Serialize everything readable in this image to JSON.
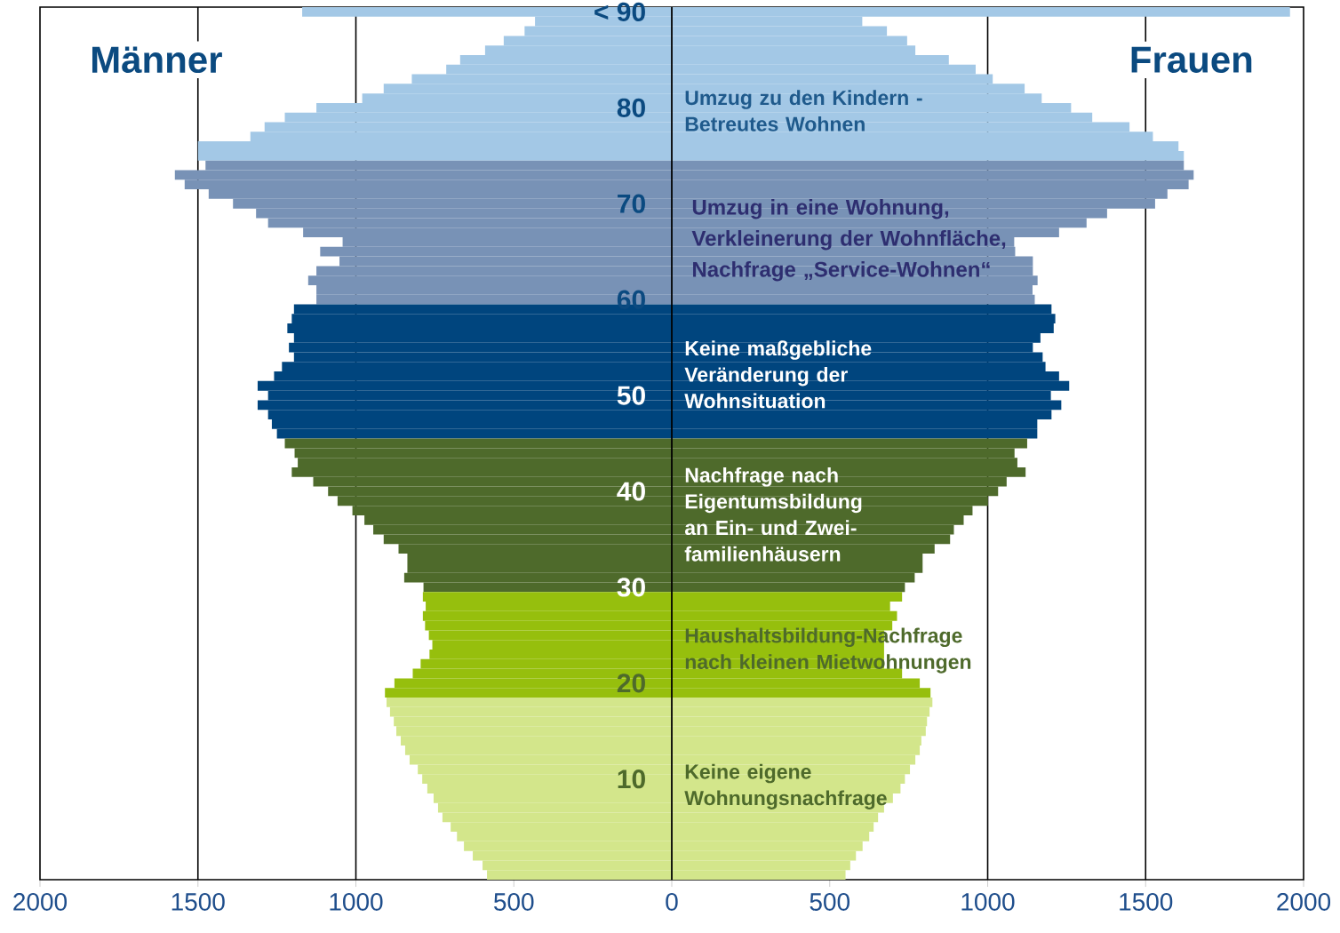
{
  "chart_data": {
    "type": "bar",
    "orientation": "horizontal",
    "stacked": true,
    "categories": [
      "< 90",
      null,
      null,
      null,
      null,
      null,
      null,
      null,
      null,
      null,
      "80",
      null,
      null,
      null,
      null,
      null,
      null,
      null,
      null,
      null,
      "70",
      null,
      null,
      null,
      null,
      null,
      null,
      null,
      null,
      null,
      "60",
      null,
      null,
      null,
      null,
      null,
      null,
      null,
      null,
      null,
      "50",
      null,
      null,
      null,
      null,
      null,
      null,
      null,
      null,
      null,
      "40",
      null,
      null,
      null,
      null,
      null,
      null,
      null,
      null,
      null,
      "30",
      null,
      null,
      null,
      null,
      null,
      null,
      null,
      null,
      null,
      "20",
      null,
      null,
      null,
      null,
      null,
      null,
      null,
      null,
      null,
      "10",
      null,
      null,
      null,
      null,
      null,
      null,
      null,
      null,
      null,
      null
    ],
    "series": [
      {
        "name": "Männer",
        "colors": [
          "#a3c8e6",
          "#a3c8e6",
          "#a3c8e6",
          "#a3c8e6",
          "#a3c8e6",
          "#a3c8e6",
          "#a3c8e6",
          "#a3c8e6",
          "#a3c8e6",
          "#a3c8e6",
          "#a3c8e6",
          "#a3c8e6",
          "#a3c8e6",
          "#a3c8e6",
          "#a3c8e6",
          "#a3c8e6",
          "#7892b6",
          "#7892b6",
          "#7892b6",
          "#7892b6",
          "#7892b6",
          "#7892b6",
          "#7892b6",
          "#7892b6",
          "#7892b6",
          "#7892b6",
          "#7892b6",
          "#7892b6",
          "#7892b6",
          "#7892b6",
          "#7892b6",
          "#00457e",
          "#00457e",
          "#00457e",
          "#00457e",
          "#00457e",
          "#00457e",
          "#00457e",
          "#00457e",
          "#00457e",
          "#00457e",
          "#00457e",
          "#00457e",
          "#00457e",
          "#00457e",
          "#4e6a2b",
          "#4e6a2b",
          "#4e6a2b",
          "#4e6a2b",
          "#4e6a2b",
          "#4e6a2b",
          "#4e6a2b",
          "#4e6a2b",
          "#4e6a2b",
          "#4e6a2b",
          "#4e6a2b",
          "#4e6a2b",
          "#4e6a2b",
          "#4e6a2b",
          "#4e6a2b",
          "#4e6a2b",
          "#96bf0d",
          "#96bf0d",
          "#96bf0d",
          "#96bf0d",
          "#96bf0d",
          "#96bf0d",
          "#96bf0d",
          "#96bf0d",
          "#96bf0d",
          "#96bf0d",
          "#96bf0d",
          "#d3e68b",
          "#d3e68b",
          "#d3e68b",
          "#d3e68b",
          "#d3e68b",
          "#d3e68b",
          "#d3e68b",
          "#d3e68b",
          "#d3e68b",
          "#d3e68b",
          "#d3e68b",
          "#d3e68b",
          "#d3e68b",
          "#d3e68b",
          "#d3e68b",
          "#d3e68b",
          "#d3e68b",
          "#d3e68b",
          "#d3e68b"
        ],
        "values": [
          -1170,
          -433,
          -466,
          -532,
          -591,
          -670,
          -714,
          -823,
          -912,
          -980,
          -1125,
          -1225,
          -1289,
          -1334,
          -1500,
          -1500,
          -1476,
          -1573,
          -1542,
          -1466,
          -1389,
          -1316,
          -1278,
          -1167,
          -1042,
          -1113,
          -1052,
          -1125,
          -1151,
          -1125,
          -1125,
          -1196,
          -1203,
          -1217,
          -1196,
          -1212,
          -1196,
          -1234,
          -1259,
          -1311,
          -1278,
          -1311,
          -1278,
          -1266,
          -1250,
          -1225,
          -1194,
          -1184,
          -1203,
          -1135,
          -1088,
          -1058,
          -1011,
          -973,
          -945,
          -912,
          -865,
          -837,
          -837,
          -847,
          -786,
          -788,
          -779,
          -788,
          -781,
          -769,
          -758,
          -767,
          -795,
          -820,
          -878,
          -908,
          -903,
          -892,
          -880,
          -872,
          -858,
          -844,
          -830,
          -804,
          -790,
          -774,
          -754,
          -740,
          -726,
          -700,
          -680,
          -658,
          -630,
          -599,
          -585
        ]
      },
      {
        "name": "Frauen",
        "colors": [
          "#a3c8e6",
          "#a3c8e6",
          "#a3c8e6",
          "#a3c8e6",
          "#a3c8e6",
          "#a3c8e6",
          "#a3c8e6",
          "#a3c8e6",
          "#a3c8e6",
          "#a3c8e6",
          "#a3c8e6",
          "#a3c8e6",
          "#a3c8e6",
          "#a3c8e6",
          "#a3c8e6",
          "#a3c8e6",
          "#7892b6",
          "#7892b6",
          "#7892b6",
          "#7892b6",
          "#7892b6",
          "#7892b6",
          "#7892b6",
          "#7892b6",
          "#7892b6",
          "#7892b6",
          "#7892b6",
          "#7892b6",
          "#7892b6",
          "#7892b6",
          "#7892b6",
          "#00457e",
          "#00457e",
          "#00457e",
          "#00457e",
          "#00457e",
          "#00457e",
          "#00457e",
          "#00457e",
          "#00457e",
          "#00457e",
          "#00457e",
          "#00457e",
          "#00457e",
          "#00457e",
          "#4e6a2b",
          "#4e6a2b",
          "#4e6a2b",
          "#4e6a2b",
          "#4e6a2b",
          "#4e6a2b",
          "#4e6a2b",
          "#4e6a2b",
          "#4e6a2b",
          "#4e6a2b",
          "#4e6a2b",
          "#4e6a2b",
          "#4e6a2b",
          "#4e6a2b",
          "#4e6a2b",
          "#4e6a2b",
          "#96bf0d",
          "#96bf0d",
          "#96bf0d",
          "#96bf0d",
          "#96bf0d",
          "#96bf0d",
          "#96bf0d",
          "#96bf0d",
          "#96bf0d",
          "#96bf0d",
          "#96bf0d",
          "#d3e68b",
          "#d3e68b",
          "#d3e68b",
          "#d3e68b",
          "#d3e68b",
          "#d3e68b",
          "#d3e68b",
          "#d3e68b",
          "#d3e68b",
          "#d3e68b",
          "#d3e68b",
          "#d3e68b",
          "#d3e68b",
          "#d3e68b",
          "#d3e68b",
          "#d3e68b",
          "#d3e68b",
          "#d3e68b",
          "#d3e68b"
        ],
        "values": [
          1957,
          603,
          681,
          745,
          771,
          877,
          962,
          1016,
          1117,
          1171,
          1264,
          1331,
          1449,
          1523,
          1604,
          1621,
          1621,
          1652,
          1636,
          1569,
          1530,
          1378,
          1313,
          1226,
          1084,
          1087,
          1143,
          1143,
          1158,
          1142,
          1149,
          1202,
          1214,
          1209,
          1167,
          1143,
          1174,
          1183,
          1226,
          1258,
          1200,
          1233,
          1202,
          1157,
          1157,
          1125,
          1085,
          1094,
          1120,
          1060,
          1033,
          1001,
          952,
          924,
          893,
          881,
          832,
          794,
          794,
          769,
          738,
          729,
          691,
          713,
          698,
          672,
          672,
          672,
          672,
          729,
          785,
          819,
          825,
          816,
          808,
          804,
          790,
          785,
          771,
          754,
          738,
          724,
          700,
          672,
          653,
          639,
          625,
          604,
          583,
          565,
          550
        ]
      }
    ],
    "xlim": [
      -2000,
      2000
    ],
    "xticks": [
      {
        "value": -2000,
        "label": "2000"
      },
      {
        "value": -1500,
        "label": "1500"
      },
      {
        "value": -1000,
        "label": "1000"
      },
      {
        "value": -500,
        "label": "500"
      },
      0,
      500,
      1000,
      1500,
      2000
    ],
    "ref_lines": [
      {
        "axis": "x",
        "value": -1500,
        "color": "#000000"
      },
      {
        "axis": "x",
        "value": -1000,
        "color": "#000000"
      },
      {
        "axis": "x",
        "value": 1000,
        "color": "#000000"
      },
      {
        "axis": "x",
        "value": 1500,
        "color": "#000000"
      }
    ],
    "annotations": [
      "Umzug zu den Kindern - Betreutes Wohnen",
      "Umzug in eine Wohnung, Verkleinerung der Wohnfläche, Nachfrage „Service-Wohnen“",
      "Keine maßgebliche Veränderung der Wohnsituation",
      "Nachfrage nach Eigentumsbildung an Ein- und Zwei-familienhäusern",
      "Haushaltsbildung-Nachfrage nach kleinen Mietwohnungen",
      "Keine eigene Wohnungsnachfrage"
    ]
  }
}
